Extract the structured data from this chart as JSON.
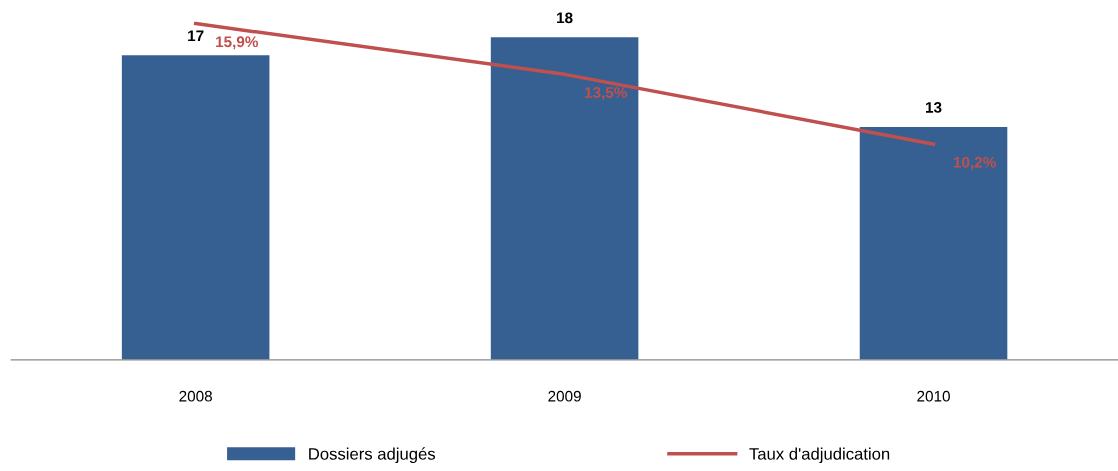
{
  "chart_data": {
    "type": "bar",
    "categories": [
      "2008",
      "2009",
      "2010"
    ],
    "series": [
      {
        "name": "Dossiers adjugés",
        "color": "#376092",
        "values": [
          17,
          18,
          13
        ]
      },
      {
        "name": "Taux d'adjudication",
        "type": "line",
        "axis": "y2",
        "color": "#c0504d",
        "values": [
          15.9,
          13.5,
          10.2
        ],
        "value_labels": [
          "15,9%",
          "13,5%",
          "10,2%"
        ]
      }
    ],
    "tick_labels": "x",
    "data_labels": true,
    "legend": "bottom",
    "marker": "none"
  }
}
